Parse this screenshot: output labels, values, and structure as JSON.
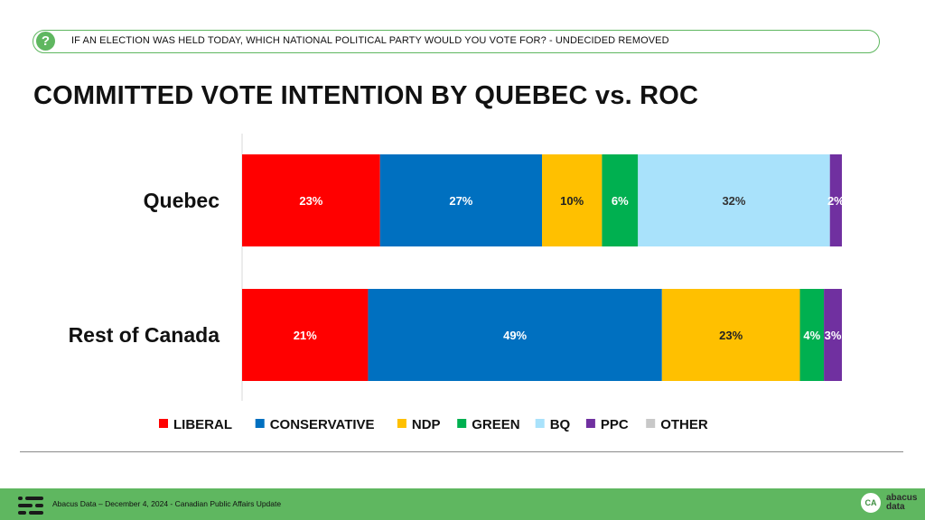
{
  "header": {
    "question_icon": "?",
    "question": "IF AN ELECTION WAS HELD TODAY, WHICH NATIONAL POLITICAL PARTY WOULD YOU VOTE FOR? - UNDECIDED REMOVED",
    "title": "COMMITTED VOTE INTENTION BY QUEBEC vs. ROC"
  },
  "footer": {
    "text": "Abacus Data – December 4, 2024 - Canadian Public Affairs Update",
    "brand_line1": "abacus",
    "brand_line2": "data",
    "brand_mark": "CA"
  },
  "colors": {
    "accent_green": "#5fb760",
    "liberal": "#ff0000",
    "conservative": "#0070c0",
    "ndp": "#ffc000",
    "green": "#00b050",
    "bq": "#a9e2fb",
    "ppc": "#7030a0",
    "other": "#c8c8c8"
  },
  "chart_data": {
    "type": "bar",
    "orientation": "horizontal",
    "stacked": true,
    "categories": [
      "Quebec",
      "Rest of Canada"
    ],
    "series": [
      {
        "name": "LIBERAL",
        "values": [
          23,
          21
        ],
        "labels": [
          "23%",
          "21%"
        ],
        "color": "#ff0000",
        "label_color": "#ffffff"
      },
      {
        "name": "CONSERVATIVE",
        "values": [
          27,
          49
        ],
        "labels": [
          "27%",
          "49%"
        ],
        "color": "#0070c0",
        "label_color": "#ffffff"
      },
      {
        "name": "NDP",
        "values": [
          10,
          23
        ],
        "labels": [
          "10%",
          "23%"
        ],
        "color": "#ffc000",
        "label_color": "#222222"
      },
      {
        "name": "GREEN",
        "values": [
          6,
          4
        ],
        "labels": [
          "6%",
          "4%"
        ],
        "color": "#00b050",
        "label_color": "#ffffff"
      },
      {
        "name": "BQ",
        "values": [
          32,
          0
        ],
        "labels": [
          "32%",
          ""
        ],
        "color": "#a9e2fb",
        "label_color": "#333333"
      },
      {
        "name": "PPC",
        "values": [
          2,
          3
        ],
        "labels": [
          "2%",
          "3%"
        ],
        "color": "#7030a0",
        "label_color": "#ffffff"
      },
      {
        "name": "OTHER",
        "values": [
          0,
          0
        ],
        "labels": [
          "",
          ""
        ],
        "color": "#c8c8c8",
        "label_color": "#222222"
      }
    ],
    "legend": {
      "position": "bottom"
    },
    "xlim": [
      0,
      100
    ],
    "grid": false
  }
}
